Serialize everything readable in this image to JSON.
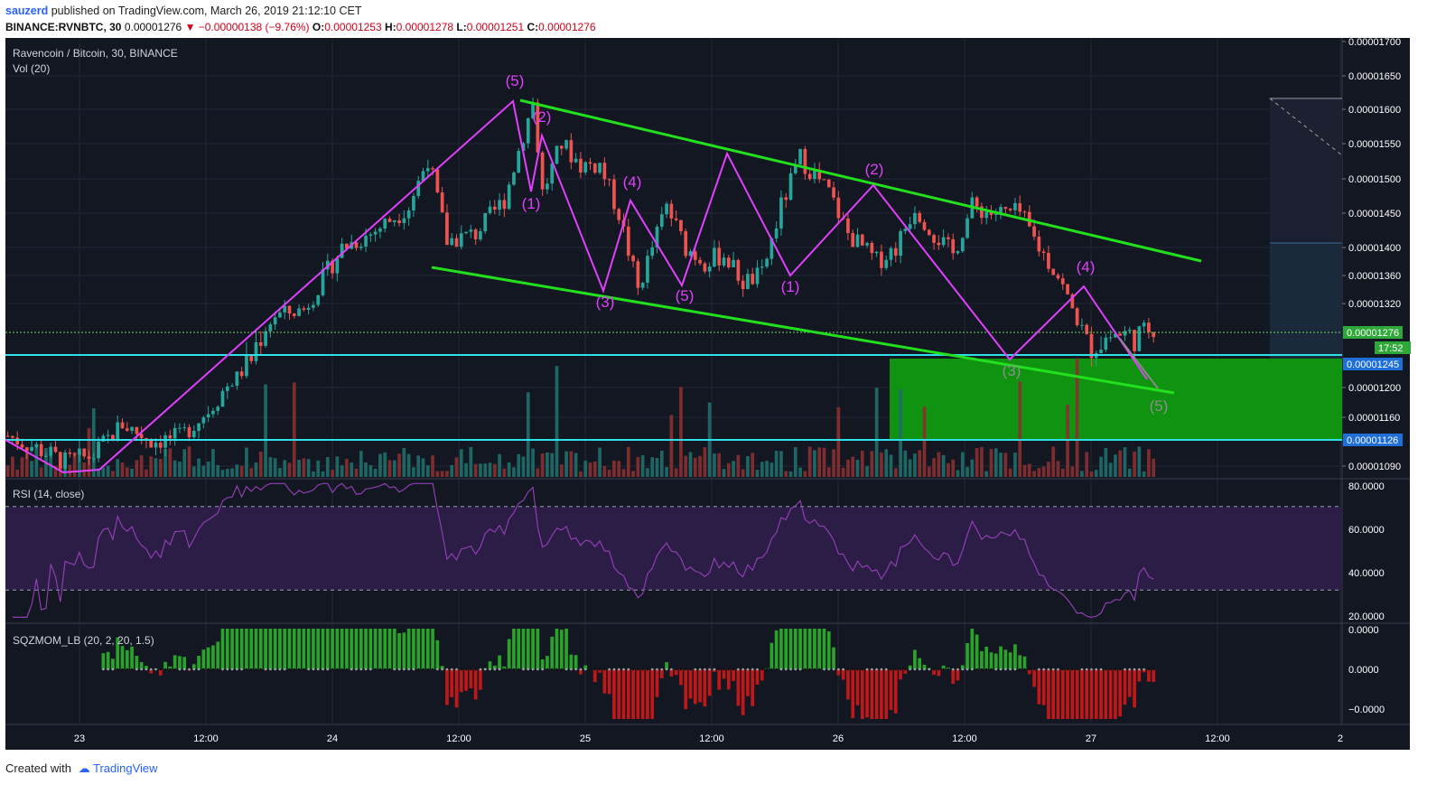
{
  "header": {
    "user": "sauzerd",
    "published": "published on TradingView.com, March 26, 2019 21:12:10 CET",
    "symbol": "BINANCE:RVNBTC, 30",
    "last": "0.00001276",
    "change": "▼ −0.00000138 (−9.76%)",
    "o_label": "O:",
    "o": "0.00001253",
    "h_label": "H:",
    "h": "0.00001278",
    "l_label": "L:",
    "l": "0.00001251",
    "c_label": "C:",
    "c": "0.00001276"
  },
  "footer": {
    "created_with": "Created with",
    "brand": "TradingView"
  },
  "colors": {
    "background": "#131722",
    "up": "#26a69a",
    "down": "#ef5350",
    "wave": "#e040fb",
    "channel": "#22e01d",
    "support": "#2fe0e8",
    "target_zone": "#109a10",
    "rsi_line": "#8e3fb0",
    "rsi_band": "#2b1d45",
    "sqz_up": "#29a329",
    "sqz_down": "#c01818"
  },
  "chart_data": [
    {
      "type": "candlestick",
      "title": "Ravencoin / Bitcoin, 30, BINANCE",
      "volume_label": "Vol (20)",
      "ylim": [
        1.07e-05,
        1.7e-05
      ],
      "y_ticks": [
        "0.00001700",
        "0.00001650",
        "0.00001600",
        "0.00001550",
        "0.00001500",
        "0.00001450",
        "0.00001400",
        "0.00001360",
        "0.00001320",
        "0.00001200",
        "0.00001160",
        "0.00001090"
      ],
      "x_ticks": [
        "23",
        "12:00",
        "24",
        "12:00",
        "25",
        "12:00",
        "26",
        "12:00",
        "27",
        "12:00",
        "2"
      ],
      "price_marks": [
        {
          "label": "0.00001276",
          "value": 1.276e-05,
          "role": "last"
        },
        {
          "label": "17:52",
          "value": 1.26e-05,
          "role": "countdown"
        },
        {
          "label": "0.00001245",
          "value": 1.245e-05,
          "role": "support"
        },
        {
          "label": "0.00001126",
          "value": 1.126e-05,
          "role": "support"
        }
      ],
      "close_path": [
        [
          0,
          1.132e-05
        ],
        [
          6,
          1.115e-05
        ],
        [
          12,
          1.095e-05
        ],
        [
          18,
          1.105e-05
        ],
        [
          24,
          1.15e-05
        ],
        [
          30,
          1.125e-05
        ],
        [
          36,
          1.13e-05
        ],
        [
          42,
          1.17e-05
        ],
        [
          48,
          1.22e-05
        ],
        [
          56,
          1.3e-05
        ],
        [
          62,
          1.31e-05
        ],
        [
          70,
          1.4e-05
        ],
        [
          76,
          1.42e-05
        ],
        [
          84,
          1.46e-05
        ],
        [
          88,
          1.53e-05
        ],
        [
          92,
          1.41e-05
        ],
        [
          98,
          1.42e-05
        ],
        [
          104,
          1.47e-05
        ],
        [
          110,
          1.61e-05
        ],
        [
          112,
          1.48e-05
        ],
        [
          116,
          1.55e-05
        ],
        [
          120,
          1.52e-05
        ],
        [
          124,
          1.52e-05
        ],
        [
          128,
          1.45e-05
        ],
        [
          132,
          1.34e-05
        ],
        [
          138,
          1.46e-05
        ],
        [
          142,
          1.4e-05
        ],
        [
          146,
          1.38e-05
        ],
        [
          150,
          1.39e-05
        ],
        [
          154,
          1.35e-05
        ],
        [
          158,
          1.36e-05
        ],
        [
          162,
          1.46e-05
        ],
        [
          166,
          1.53e-05
        ],
        [
          172,
          1.48e-05
        ],
        [
          176,
          1.42e-05
        ],
        [
          182,
          1.38e-05
        ],
        [
          186,
          1.4e-05
        ],
        [
          190,
          1.46e-05
        ],
        [
          194,
          1.42e-05
        ],
        [
          198,
          1.39e-05
        ],
        [
          202,
          1.46e-05
        ],
        [
          206,
          1.45e-05
        ],
        [
          212,
          1.45e-05
        ],
        [
          216,
          1.4e-05
        ],
        [
          220,
          1.36e-05
        ],
        [
          226,
          1.26e-05
        ],
        [
          232,
          1.27e-05
        ],
        [
          236,
          1.27e-05
        ],
        [
          240,
          1.28e-05
        ]
      ],
      "wave_labels": [
        {
          "label": "(5)",
          "x": 110,
          "y": 1.62e-05
        },
        {
          "label": "(2)",
          "x": 116,
          "y": 1.57e-05
        },
        {
          "label": "(1)",
          "x": 114,
          "y": 1.46e-05
        },
        {
          "label": "(4)",
          "x": 136,
          "y": 1.49e-05
        },
        {
          "label": "(3)",
          "x": 130,
          "y": 1.31e-05
        },
        {
          "label": "(5)",
          "x": 148,
          "y": 1.32e-05
        },
        {
          "label": "(1)",
          "x": 168,
          "y": 1.34e-05
        },
        {
          "label": "(2)",
          "x": 186,
          "y": 1.51e-05
        },
        {
          "label": "(3)",
          "x": 216,
          "y": 1.23e-05
        },
        {
          "label": "(4)",
          "x": 230,
          "y": 1.37e-05
        },
        {
          "label": "(5)",
          "x": 246,
          "y": 1.15e-05
        }
      ]
    },
    {
      "type": "line",
      "title": "RSI (14, close)",
      "ylim": [
        15,
        82
      ],
      "y_ticks": [
        "80.0000",
        "60.0000",
        "40.0000",
        "20.0000"
      ],
      "bands": [
        30,
        70
      ]
    },
    {
      "type": "bar",
      "title": "SQZMOM_LB (20, 2, 20, 1.5)",
      "y_ticks": [
        "0.0000",
        "0.0000",
        "−0.0000"
      ]
    }
  ]
}
